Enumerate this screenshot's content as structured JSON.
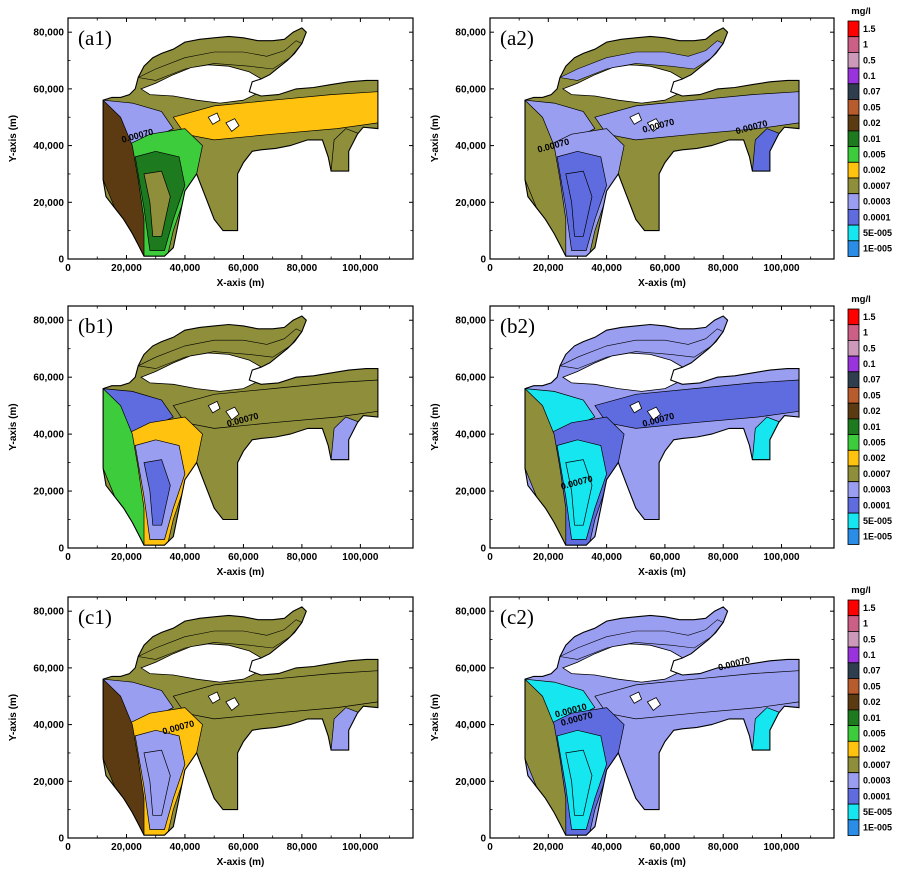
{
  "chart_data": {
    "type": "contour-map",
    "unit": "mg/l",
    "x_axis": {
      "label": "X-axis (m)",
      "range": [
        0,
        118000
      ],
      "ticks": [
        0,
        20000,
        40000,
        60000,
        80000,
        100000
      ],
      "tick_labels": [
        "0",
        "20,000",
        "40,000",
        "60,000",
        "80,000",
        "100,000"
      ]
    },
    "y_axis": {
      "label": "Y-axis (m)",
      "range": [
        0,
        85000
      ],
      "ticks": [
        0,
        20000,
        40000,
        60000,
        80000
      ],
      "tick_labels": [
        "0",
        "20,000",
        "40,000",
        "60,000",
        "80,000"
      ]
    },
    "legend": {
      "unit": "mg/l",
      "levels": [
        {
          "label": "1.5",
          "color": "#ff0000"
        },
        {
          "label": "1",
          "color": "#cc5f86"
        },
        {
          "label": "0.5",
          "color": "#cc99bb"
        },
        {
          "label": "0.1",
          "color": "#9933dd"
        },
        {
          "label": "0.07",
          "color": "#2e3e4e"
        },
        {
          "label": "0.05",
          "color": "#b85c2e"
        },
        {
          "label": "0.02",
          "color": "#5c3a12"
        },
        {
          "label": "0.01",
          "color": "#1e7a1e"
        },
        {
          "label": "0.005",
          "color": "#3ccc3c"
        },
        {
          "label": "0.002",
          "color": "#ffc20e"
        },
        {
          "label": "0.0007",
          "color": "#8f8e3a"
        },
        {
          "label": "0.0003",
          "color": "#9a9ef0"
        },
        {
          "label": "0.0001",
          "color": "#5f6ce0"
        },
        {
          "label": "5E-005",
          "color": "#16e6f0"
        },
        {
          "label": "1E-005",
          "color": "#2a8ee8"
        }
      ]
    },
    "panels": [
      {
        "id": "a1",
        "label": "(a1)",
        "contour_labels": [
          "0.00070"
        ],
        "zones": [
          "olive",
          "lime",
          "green",
          "brown",
          "gold"
        ]
      },
      {
        "id": "a2",
        "label": "(a2)",
        "contour_labels": [
          "0.00070",
          "0.00070",
          "0.00070"
        ],
        "zones": [
          "lavender",
          "blue",
          "cyan",
          "olive"
        ]
      },
      {
        "id": "b1",
        "label": "(b1)",
        "contour_labels": [
          "0.00070"
        ],
        "zones": [
          "blue",
          "lavender",
          "gold",
          "olive",
          "lime"
        ]
      },
      {
        "id": "b2",
        "label": "(b2)",
        "contour_labels": [
          "0.00070",
          "0.00070"
        ],
        "zones": [
          "cyan",
          "blue",
          "lavender",
          "olive"
        ]
      },
      {
        "id": "c1",
        "label": "(c1)",
        "contour_labels": [
          "0.00070"
        ],
        "zones": [
          "lavender",
          "olive",
          "gold",
          "lime",
          "brown"
        ]
      },
      {
        "id": "c2",
        "label": "(c2)",
        "contour_labels": [
          "0.00010",
          "0.00070",
          "0.00070"
        ],
        "zones": [
          "cyan",
          "blue",
          "lavender",
          "olive"
        ]
      }
    ]
  }
}
